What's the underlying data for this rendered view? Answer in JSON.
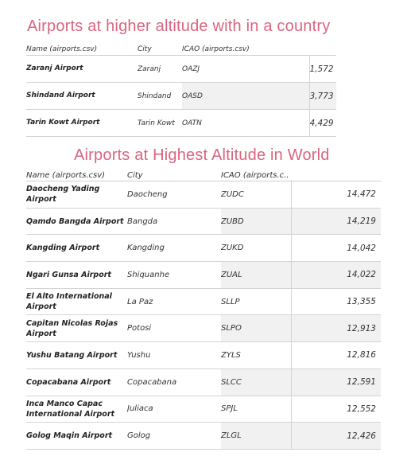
{
  "section1": {
    "title": "Airports at higher altitude with in a country",
    "headers": {
      "name": "Name (airports.csv)",
      "city": "City",
      "icao": "ICAO (airports.csv)"
    },
    "rows": [
      {
        "name": "Zaranj Airport",
        "city": "Zaranj",
        "icao": "OAZJ",
        "value": "1,572"
      },
      {
        "name": "Shindand Airport",
        "city": "Shindand",
        "icao": "OASD",
        "value": "3,773"
      },
      {
        "name": "Tarin Kowt Airport",
        "city": "Tarin Kowt",
        "icao": "OATN",
        "value": "4,429"
      }
    ]
  },
  "section2": {
    "title": "Airports at Highest Altitude in World",
    "headers": {
      "name": "Name (airports.csv)",
      "city": "City",
      "icao": "ICAO (airports.c.."
    },
    "rows": [
      {
        "name": "Daocheng Yading Airport",
        "city": "Daocheng",
        "icao": "ZUDC",
        "value": "14,472"
      },
      {
        "name": "Qamdo Bangda Airport",
        "city": "Bangda",
        "icao": "ZUBD",
        "value": "14,219"
      },
      {
        "name": "Kangding Airport",
        "city": "Kangding",
        "icao": "ZUKD",
        "value": "14,042"
      },
      {
        "name": "Ngari Gunsa Airport",
        "city": "Shiquanhe",
        "icao": "ZUAL",
        "value": "14,022"
      },
      {
        "name": "El Alto International Airport",
        "city": "La Paz",
        "icao": "SLLP",
        "value": "13,355"
      },
      {
        "name": "Capitan Nicolas Rojas Airport",
        "city": "Potosi",
        "icao": "SLPO",
        "value": "12,913"
      },
      {
        "name": "Yushu Batang Airport",
        "city": "Yushu",
        "icao": "ZYLS",
        "value": "12,816"
      },
      {
        "name": "Copacabana Airport",
        "city": "Copacabana",
        "icao": "SLCC",
        "value": "12,591"
      },
      {
        "name": "Inca Manco Capac International Airport",
        "city": "Juliaca",
        "icao": "SPJL",
        "value": "12,552"
      },
      {
        "name": "Golog Maqin Airport",
        "city": "Golog",
        "icao": "ZLGL",
        "value": "12,426"
      }
    ]
  }
}
